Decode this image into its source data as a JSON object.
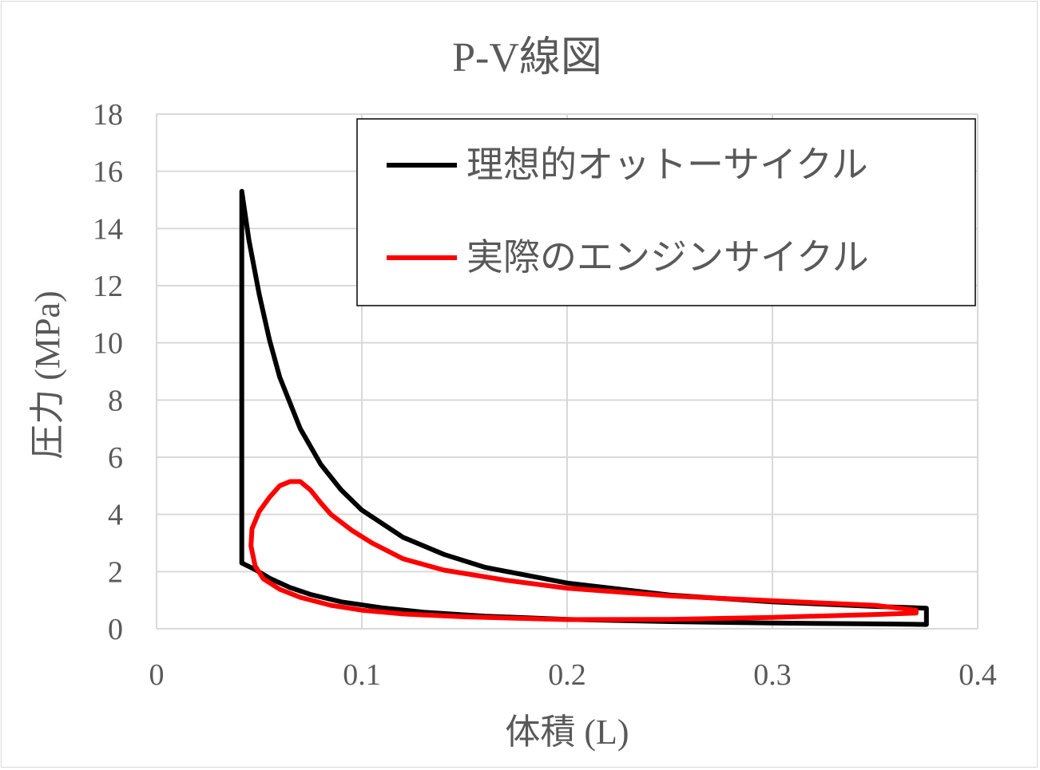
{
  "chart_data": {
    "type": "line",
    "title": "P-V線図",
    "xlabel": "体積 (L)",
    "ylabel": "圧力 (MPa)",
    "xlim": [
      0,
      0.4
    ],
    "ylim": [
      0,
      18
    ],
    "xticks": [
      "0",
      "0.1",
      "0.2",
      "0.3",
      "0.4"
    ],
    "yticks": [
      "0",
      "2",
      "4",
      "6",
      "8",
      "10",
      "12",
      "14",
      "16",
      "18"
    ],
    "grid": true,
    "legend_position": "top-right",
    "series": [
      {
        "name": "理想的オットーサイクル",
        "color": "#000000",
        "points": [
          [
            0.375,
            0.15
          ],
          [
            0.35,
            0.17
          ],
          [
            0.3,
            0.2
          ],
          [
            0.25,
            0.25
          ],
          [
            0.2,
            0.33
          ],
          [
            0.16,
            0.44
          ],
          [
            0.13,
            0.58
          ],
          [
            0.11,
            0.73
          ],
          [
            0.09,
            0.94
          ],
          [
            0.075,
            1.2
          ],
          [
            0.065,
            1.44
          ],
          [
            0.055,
            1.77
          ],
          [
            0.048,
            2.07
          ],
          [
            0.0415,
            2.3
          ],
          [
            0.0415,
            15.3
          ],
          [
            0.045,
            13.6
          ],
          [
            0.05,
            11.7
          ],
          [
            0.055,
            10.1
          ],
          [
            0.06,
            8.8
          ],
          [
            0.07,
            7.0
          ],
          [
            0.08,
            5.75
          ],
          [
            0.09,
            4.85
          ],
          [
            0.1,
            4.15
          ],
          [
            0.12,
            3.2
          ],
          [
            0.14,
            2.6
          ],
          [
            0.16,
            2.15
          ],
          [
            0.2,
            1.6
          ],
          [
            0.25,
            1.18
          ],
          [
            0.3,
            0.94
          ],
          [
            0.35,
            0.78
          ],
          [
            0.375,
            0.72
          ],
          [
            0.375,
            0.15
          ]
        ]
      },
      {
        "name": "実際のエンジンサイクル",
        "color": "#ff0000",
        "points": [
          [
            0.37,
            0.55
          ],
          [
            0.35,
            0.5
          ],
          [
            0.3,
            0.4
          ],
          [
            0.25,
            0.33
          ],
          [
            0.2,
            0.32
          ],
          [
            0.15,
            0.42
          ],
          [
            0.12,
            0.52
          ],
          [
            0.1,
            0.65
          ],
          [
            0.085,
            0.82
          ],
          [
            0.07,
            1.1
          ],
          [
            0.06,
            1.38
          ],
          [
            0.052,
            1.75
          ],
          [
            0.048,
            2.2
          ],
          [
            0.046,
            2.9
          ],
          [
            0.0465,
            3.5
          ],
          [
            0.05,
            4.1
          ],
          [
            0.055,
            4.6
          ],
          [
            0.06,
            5.0
          ],
          [
            0.065,
            5.15
          ],
          [
            0.07,
            5.15
          ],
          [
            0.075,
            4.85
          ],
          [
            0.08,
            4.4
          ],
          [
            0.085,
            4.0
          ],
          [
            0.095,
            3.45
          ],
          [
            0.105,
            3.0
          ],
          [
            0.12,
            2.45
          ],
          [
            0.14,
            2.05
          ],
          [
            0.17,
            1.7
          ],
          [
            0.2,
            1.42
          ],
          [
            0.25,
            1.15
          ],
          [
            0.3,
            0.98
          ],
          [
            0.35,
            0.82
          ],
          [
            0.37,
            0.65
          ],
          [
            0.37,
            0.55
          ]
        ]
      }
    ]
  }
}
